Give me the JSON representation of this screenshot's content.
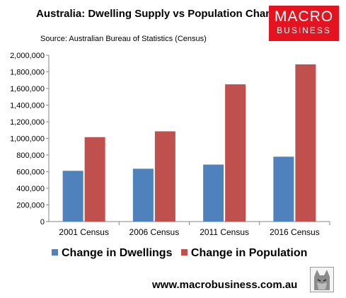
{
  "header": {
    "title": "Australia: Dwelling Supply vs Population Change",
    "source": "Source: Australian Bureau of Statistics (Census)"
  },
  "logo": {
    "line1": "MACRO",
    "line2": "BUSINESS",
    "color": "#e5121f"
  },
  "footer": {
    "website": "www.macrobusiness.com.au"
  },
  "chart_data": {
    "type": "bar",
    "title": "Australia: Dwelling Supply vs Population Change",
    "categories": [
      "2001 Census",
      "2006 Census",
      "2011 Census",
      "2016 Census"
    ],
    "series": [
      {
        "name": "Change in Dwellings",
        "color": "#4f81bd",
        "values": [
          610000,
          635000,
          685000,
          780000
        ]
      },
      {
        "name": "Change in Population",
        "color": "#c0504d",
        "values": [
          1015000,
          1085000,
          1650000,
          1890000
        ]
      }
    ],
    "ylim": [
      0,
      2000000
    ],
    "yticks": [
      "0",
      "200,000",
      "400,000",
      "600,000",
      "800,000",
      "1,000,000",
      "1,200,000",
      "1,400,000",
      "1,600,000",
      "1,800,000",
      "2,000,000"
    ],
    "grid": false,
    "legend": "bottom"
  }
}
